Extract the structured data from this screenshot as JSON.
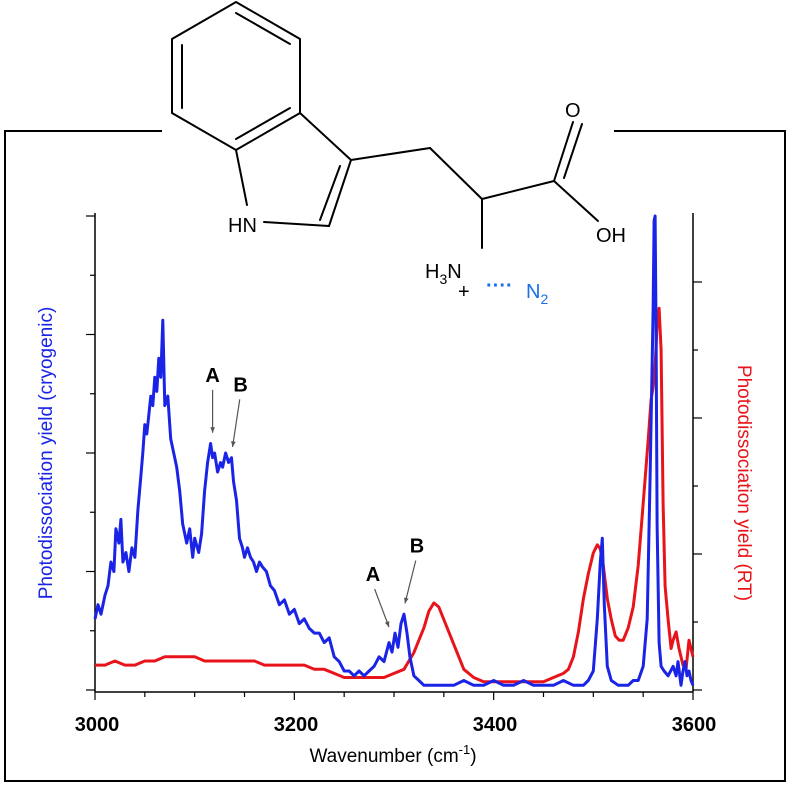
{
  "chart_data": {
    "type": "line",
    "xlabel": "Wavenumber (cm",
    "xlabel_sup": "-1",
    "xlabel_end": ")",
    "xlim": [
      3000,
      3600
    ],
    "x_ticks": [
      "3000",
      "3200",
      "3400",
      "3600"
    ],
    "ylabel_left": "Photodissociation yield (cryogenic)",
    "ylabel_right": "Photodissociation yield (RT)",
    "ylim": [
      0,
      1
    ],
    "colors": {
      "cryogenic": "#1a24e6",
      "rt": "#e8141b"
    },
    "series": [
      {
        "name": "cryogenic",
        "points": [
          [
            3000,
            0.15
          ],
          [
            3003,
            0.18
          ],
          [
            3006,
            0.16
          ],
          [
            3010,
            0.2
          ],
          [
            3013,
            0.22
          ],
          [
            3016,
            0.27
          ],
          [
            3019,
            0.25
          ],
          [
            3021,
            0.34
          ],
          [
            3024,
            0.31
          ],
          [
            3026,
            0.36
          ],
          [
            3028,
            0.27
          ],
          [
            3031,
            0.29
          ],
          [
            3034,
            0.25
          ],
          [
            3037,
            0.3
          ],
          [
            3040,
            0.28
          ],
          [
            3043,
            0.38
          ],
          [
            3046,
            0.45
          ],
          [
            3048,
            0.5
          ],
          [
            3050,
            0.56
          ],
          [
            3052,
            0.54
          ],
          [
            3054,
            0.58
          ],
          [
            3056,
            0.62
          ],
          [
            3058,
            0.6
          ],
          [
            3060,
            0.66
          ],
          [
            3062,
            0.63
          ],
          [
            3064,
            0.7
          ],
          [
            3066,
            0.66
          ],
          [
            3068,
            0.78
          ],
          [
            3070,
            0.6
          ],
          [
            3073,
            0.62
          ],
          [
            3076,
            0.53
          ],
          [
            3079,
            0.5
          ],
          [
            3082,
            0.47
          ],
          [
            3085,
            0.42
          ],
          [
            3088,
            0.35
          ],
          [
            3092,
            0.31
          ],
          [
            3095,
            0.34
          ],
          [
            3098,
            0.28
          ],
          [
            3100,
            0.32
          ],
          [
            3104,
            0.29
          ],
          [
            3107,
            0.33
          ],
          [
            3110,
            0.42
          ],
          [
            3113,
            0.48
          ],
          [
            3116,
            0.52
          ],
          [
            3118,
            0.49
          ],
          [
            3120,
            0.5
          ],
          [
            3123,
            0.46
          ],
          [
            3126,
            0.48
          ],
          [
            3128,
            0.47
          ],
          [
            3131,
            0.5
          ],
          [
            3134,
            0.48
          ],
          [
            3137,
            0.49
          ],
          [
            3139,
            0.44
          ],
          [
            3142,
            0.4
          ],
          [
            3145,
            0.32
          ],
          [
            3148,
            0.3
          ],
          [
            3150,
            0.28
          ],
          [
            3153,
            0.3
          ],
          [
            3156,
            0.28
          ],
          [
            3159,
            0.27
          ],
          [
            3162,
            0.25
          ],
          [
            3165,
            0.27
          ],
          [
            3168,
            0.26
          ],
          [
            3172,
            0.25
          ],
          [
            3176,
            0.22
          ],
          [
            3180,
            0.21
          ],
          [
            3185,
            0.18
          ],
          [
            3190,
            0.19
          ],
          [
            3195,
            0.16
          ],
          [
            3200,
            0.17
          ],
          [
            3205,
            0.14
          ],
          [
            3210,
            0.15
          ],
          [
            3215,
            0.13
          ],
          [
            3220,
            0.12
          ],
          [
            3225,
            0.12
          ],
          [
            3230,
            0.1
          ],
          [
            3235,
            0.11
          ],
          [
            3240,
            0.07
          ],
          [
            3245,
            0.06
          ],
          [
            3250,
            0.04
          ],
          [
            3255,
            0.04
          ],
          [
            3260,
            0.03
          ],
          [
            3265,
            0.04
          ],
          [
            3270,
            0.03
          ],
          [
            3275,
            0.04
          ],
          [
            3280,
            0.05
          ],
          [
            3285,
            0.07
          ],
          [
            3290,
            0.06
          ],
          [
            3295,
            0.1
          ],
          [
            3298,
            0.08
          ],
          [
            3301,
            0.12
          ],
          [
            3304,
            0.09
          ],
          [
            3307,
            0.14
          ],
          [
            3310,
            0.16
          ],
          [
            3313,
            0.12
          ],
          [
            3316,
            0.07
          ],
          [
            3320,
            0.03
          ],
          [
            3325,
            0.02
          ],
          [
            3330,
            0.01
          ],
          [
            3340,
            0.01
          ],
          [
            3350,
            0.01
          ],
          [
            3360,
            0.01
          ],
          [
            3370,
            0.02
          ],
          [
            3380,
            0.01
          ],
          [
            3390,
            0.01
          ],
          [
            3400,
            0.02
          ],
          [
            3410,
            0.01
          ],
          [
            3420,
            0.01
          ],
          [
            3430,
            0.02
          ],
          [
            3440,
            0.01
          ],
          [
            3450,
            0.01
          ],
          [
            3460,
            0.01
          ],
          [
            3470,
            0.02
          ],
          [
            3480,
            0.01
          ],
          [
            3490,
            0.01
          ],
          [
            3495,
            0.02
          ],
          [
            3500,
            0.04
          ],
          [
            3504,
            0.15
          ],
          [
            3507,
            0.27
          ],
          [
            3509,
            0.32
          ],
          [
            3511,
            0.18
          ],
          [
            3514,
            0.05
          ],
          [
            3518,
            0.02
          ],
          [
            3525,
            0.01
          ],
          [
            3530,
            0.01
          ],
          [
            3535,
            0.01
          ],
          [
            3540,
            0.02
          ],
          [
            3545,
            0.02
          ],
          [
            3550,
            0.05
          ],
          [
            3554,
            0.15
          ],
          [
            3557,
            0.45
          ],
          [
            3560,
            0.8
          ],
          [
            3561,
            0.99
          ],
          [
            3562,
            1.0
          ],
          [
            3563,
            0.75
          ],
          [
            3564,
            0.35
          ],
          [
            3566,
            0.1
          ],
          [
            3568,
            0.05
          ],
          [
            3571,
            0.04
          ],
          [
            3575,
            0.03
          ],
          [
            3580,
            0.05
          ],
          [
            3583,
            0.03
          ],
          [
            3585,
            0.06
          ],
          [
            3588,
            0.01
          ],
          [
            3590,
            0.04
          ],
          [
            3592,
            0.06
          ],
          [
            3594,
            0.03
          ],
          [
            3596,
            0.04
          ],
          [
            3598,
            0.02
          ],
          [
            3600,
            0.01
          ]
        ]
      },
      {
        "name": "RT",
        "points": [
          [
            3000,
            0.06
          ],
          [
            3010,
            0.06
          ],
          [
            3020,
            0.07
          ],
          [
            3030,
            0.06
          ],
          [
            3040,
            0.06
          ],
          [
            3050,
            0.07
          ],
          [
            3060,
            0.07
          ],
          [
            3070,
            0.08
          ],
          [
            3080,
            0.08
          ],
          [
            3090,
            0.08
          ],
          [
            3100,
            0.08
          ],
          [
            3110,
            0.07
          ],
          [
            3120,
            0.07
          ],
          [
            3130,
            0.07
          ],
          [
            3140,
            0.07
          ],
          [
            3150,
            0.07
          ],
          [
            3160,
            0.07
          ],
          [
            3170,
            0.06
          ],
          [
            3180,
            0.06
          ],
          [
            3190,
            0.06
          ],
          [
            3200,
            0.06
          ],
          [
            3210,
            0.06
          ],
          [
            3220,
            0.05
          ],
          [
            3230,
            0.05
          ],
          [
            3240,
            0.04
          ],
          [
            3250,
            0.03
          ],
          [
            3260,
            0.03
          ],
          [
            3270,
            0.03
          ],
          [
            3280,
            0.03
          ],
          [
            3290,
            0.03
          ],
          [
            3300,
            0.04
          ],
          [
            3310,
            0.05
          ],
          [
            3315,
            0.07
          ],
          [
            3320,
            0.09
          ],
          [
            3325,
            0.12
          ],
          [
            3330,
            0.15
          ],
          [
            3335,
            0.19
          ],
          [
            3340,
            0.21
          ],
          [
            3345,
            0.2
          ],
          [
            3350,
            0.17
          ],
          [
            3355,
            0.14
          ],
          [
            3360,
            0.11
          ],
          [
            3365,
            0.08
          ],
          [
            3370,
            0.05
          ],
          [
            3380,
            0.03
          ],
          [
            3390,
            0.02
          ],
          [
            3400,
            0.02
          ],
          [
            3410,
            0.02
          ],
          [
            3420,
            0.02
          ],
          [
            3430,
            0.02
          ],
          [
            3440,
            0.02
          ],
          [
            3450,
            0.02
          ],
          [
            3460,
            0.03
          ],
          [
            3470,
            0.04
          ],
          [
            3475,
            0.05
          ],
          [
            3480,
            0.08
          ],
          [
            3485,
            0.14
          ],
          [
            3490,
            0.22
          ],
          [
            3495,
            0.28
          ],
          [
            3500,
            0.33
          ],
          [
            3504,
            0.35
          ],
          [
            3507,
            0.34
          ],
          [
            3510,
            0.3
          ],
          [
            3514,
            0.22
          ],
          [
            3518,
            0.17
          ],
          [
            3522,
            0.13
          ],
          [
            3526,
            0.12
          ],
          [
            3530,
            0.12
          ],
          [
            3535,
            0.15
          ],
          [
            3540,
            0.2
          ],
          [
            3545,
            0.3
          ],
          [
            3550,
            0.45
          ],
          [
            3555,
            0.6
          ],
          [
            3558,
            0.7
          ],
          [
            3560,
            0.73
          ],
          [
            3562,
            0.78
          ],
          [
            3564,
            0.88
          ],
          [
            3566,
            0.92
          ],
          [
            3568,
            0.82
          ],
          [
            3570,
            0.45
          ],
          [
            3572,
            0.25
          ],
          [
            3575,
            0.17
          ],
          [
            3578,
            0.1
          ],
          [
            3580,
            0.12
          ],
          [
            3583,
            0.14
          ],
          [
            3586,
            0.1
          ],
          [
            3590,
            0.06
          ],
          [
            3593,
            0.05
          ],
          [
            3596,
            0.12
          ],
          [
            3598,
            0.1
          ],
          [
            3600,
            0.08
          ]
        ]
      }
    ],
    "annotations": [
      {
        "text": "A",
        "x": 3118,
        "y": 0.53,
        "label_y": 0.65
      },
      {
        "text": "B",
        "x": 3138,
        "y": 0.5,
        "label_y": 0.63
      },
      {
        "text": "A",
        "x": 3295,
        "y": 0.12,
        "label_y": 0.23
      },
      {
        "text": "B",
        "x": 3311,
        "y": 0.17,
        "label_y": 0.29
      }
    ]
  },
  "molecule": {
    "nh": "HN",
    "oh": "OH",
    "o": "O",
    "h3n_h": "H",
    "h3n_sub": "3",
    "h3n_n": "N",
    "plus": "+",
    "dots": "····",
    "n2_n": "N",
    "n2_sub": "2"
  }
}
